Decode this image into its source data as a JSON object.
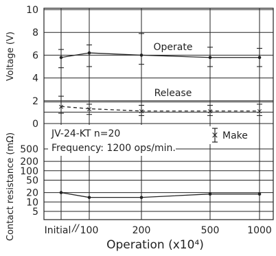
{
  "chart_data": {
    "type": "line",
    "x": {
      "categories": [
        "Initial",
        "100",
        "200",
        "500",
        "1000"
      ],
      "break_marker": "//",
      "label": "Operation (x10⁴)"
    },
    "voltage_panel": {
      "ylabel": "Voltage (V)",
      "ylim": [
        0,
        10
      ],
      "ticks": [
        "10",
        "8",
        "6",
        "4",
        "2",
        "0"
      ],
      "grid": true,
      "series": [
        {
          "name": "Operate",
          "style": "solid",
          "values": [
            5.8,
            6.2,
            6.0,
            5.8,
            5.8
          ],
          "error_low": [
            4.9,
            5.0,
            5.2,
            5.0,
            5.0
          ],
          "error_high": [
            6.5,
            6.9,
            7.9,
            6.7,
            6.6
          ]
        },
        {
          "name": "Release",
          "style": "dashed",
          "values": [
            1.5,
            1.3,
            1.1,
            1.1,
            1.1
          ],
          "error_low": [
            0.9,
            0.8,
            0.7,
            0.7,
            0.7
          ],
          "error_high": [
            2.4,
            1.7,
            1.6,
            1.6,
            1.7
          ]
        }
      ]
    },
    "resistance_panel": {
      "ylabel": "Contact resistance (mΩ)",
      "scale": "log",
      "ylim": [
        3,
        1000
      ],
      "ticks": [
        "500",
        "200",
        "100",
        "50",
        "20",
        "10",
        "5"
      ],
      "grid": true,
      "series": [
        {
          "name": "Make",
          "style": "solid",
          "values": [
            20,
            14,
            14,
            18,
            18
          ]
        }
      ]
    },
    "annotations": {
      "model": "JV-24-KT n=20",
      "frequency": "Frequency: 1200 ops/min.",
      "legend_label": "Make",
      "legend_marker": "×"
    }
  },
  "colors": {
    "line": "#222222",
    "grid": "#222222"
  }
}
